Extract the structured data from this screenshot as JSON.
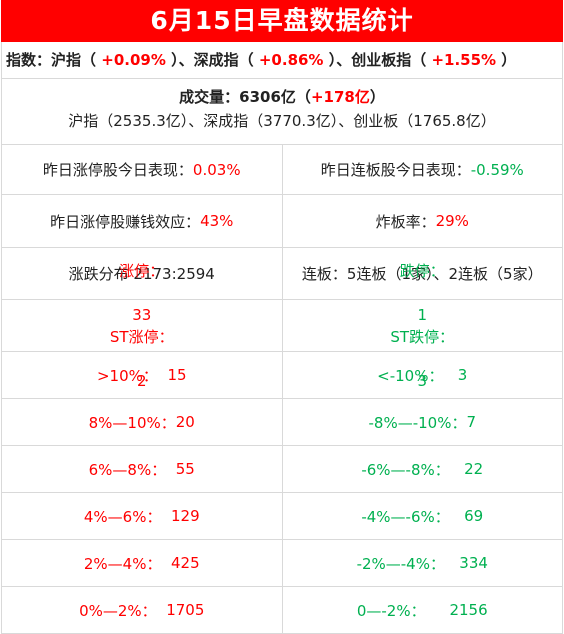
{
  "title": "6月15日早盘数据统计",
  "index": {
    "label": "指数：",
    "items": [
      {
        "name": "沪指",
        "value": "+0.09%"
      },
      {
        "name": "深成指",
        "value": "+0.86%"
      },
      {
        "name": "创业板指",
        "value": "+1.55%"
      }
    ]
  },
  "volume": {
    "label": "成交量：",
    "total": "6306亿",
    "change": "+178亿",
    "detail": "沪指（2535.3亿）、深成指（3770.3亿）、创业板（1765.8亿）"
  },
  "stats": {
    "zt_yesterday_label": "昨日涨停股今日表现：",
    "zt_yesterday_value": "0.03%",
    "lb_yesterday_label": "昨日连板股今日表现：",
    "lb_yesterday_value": "-0.59%",
    "profit_label": "昨日涨停股赚钱效应：",
    "profit_value": "43%",
    "zhaban_label": "炸板率：",
    "zhaban_value": "29%",
    "distribution_text": "涨跌分布 2173:2594",
    "lianban_text": "连板：5连板（1家）、2连板（5家）"
  },
  "up": [
    {
      "label": "涨停：",
      "count": "33"
    },
    {
      "label": "ST涨停：",
      "count": "2"
    },
    {
      "label": ">10%：",
      "count": "15"
    },
    {
      "label": "8%—10%：",
      "count": "20"
    },
    {
      "label": "6%—8%：",
      "count": "55"
    },
    {
      "label": "4%—6%：",
      "count": "129"
    },
    {
      "label": "2%—4%：",
      "count": "425"
    },
    {
      "label": "0%—2%：",
      "count": "1705"
    }
  ],
  "down": [
    {
      "label": "跌停：",
      "count": "1"
    },
    {
      "label": "ST跌停：",
      "count": "3"
    },
    {
      "label": "<-10%：",
      "count": "3"
    },
    {
      "label": "-8%—-10%：",
      "count": "7"
    },
    {
      "label": "-6%—-8%：",
      "count": "22"
    },
    {
      "label": "-4%—-6%：",
      "count": "69"
    },
    {
      "label": "-2%—-4%：",
      "count": "334"
    },
    {
      "label": "0—-2%：",
      "count": "2156"
    }
  ],
  "colors": {
    "header_bg": "#ff0000",
    "up": "#ff0000",
    "down": "#00b050"
  }
}
